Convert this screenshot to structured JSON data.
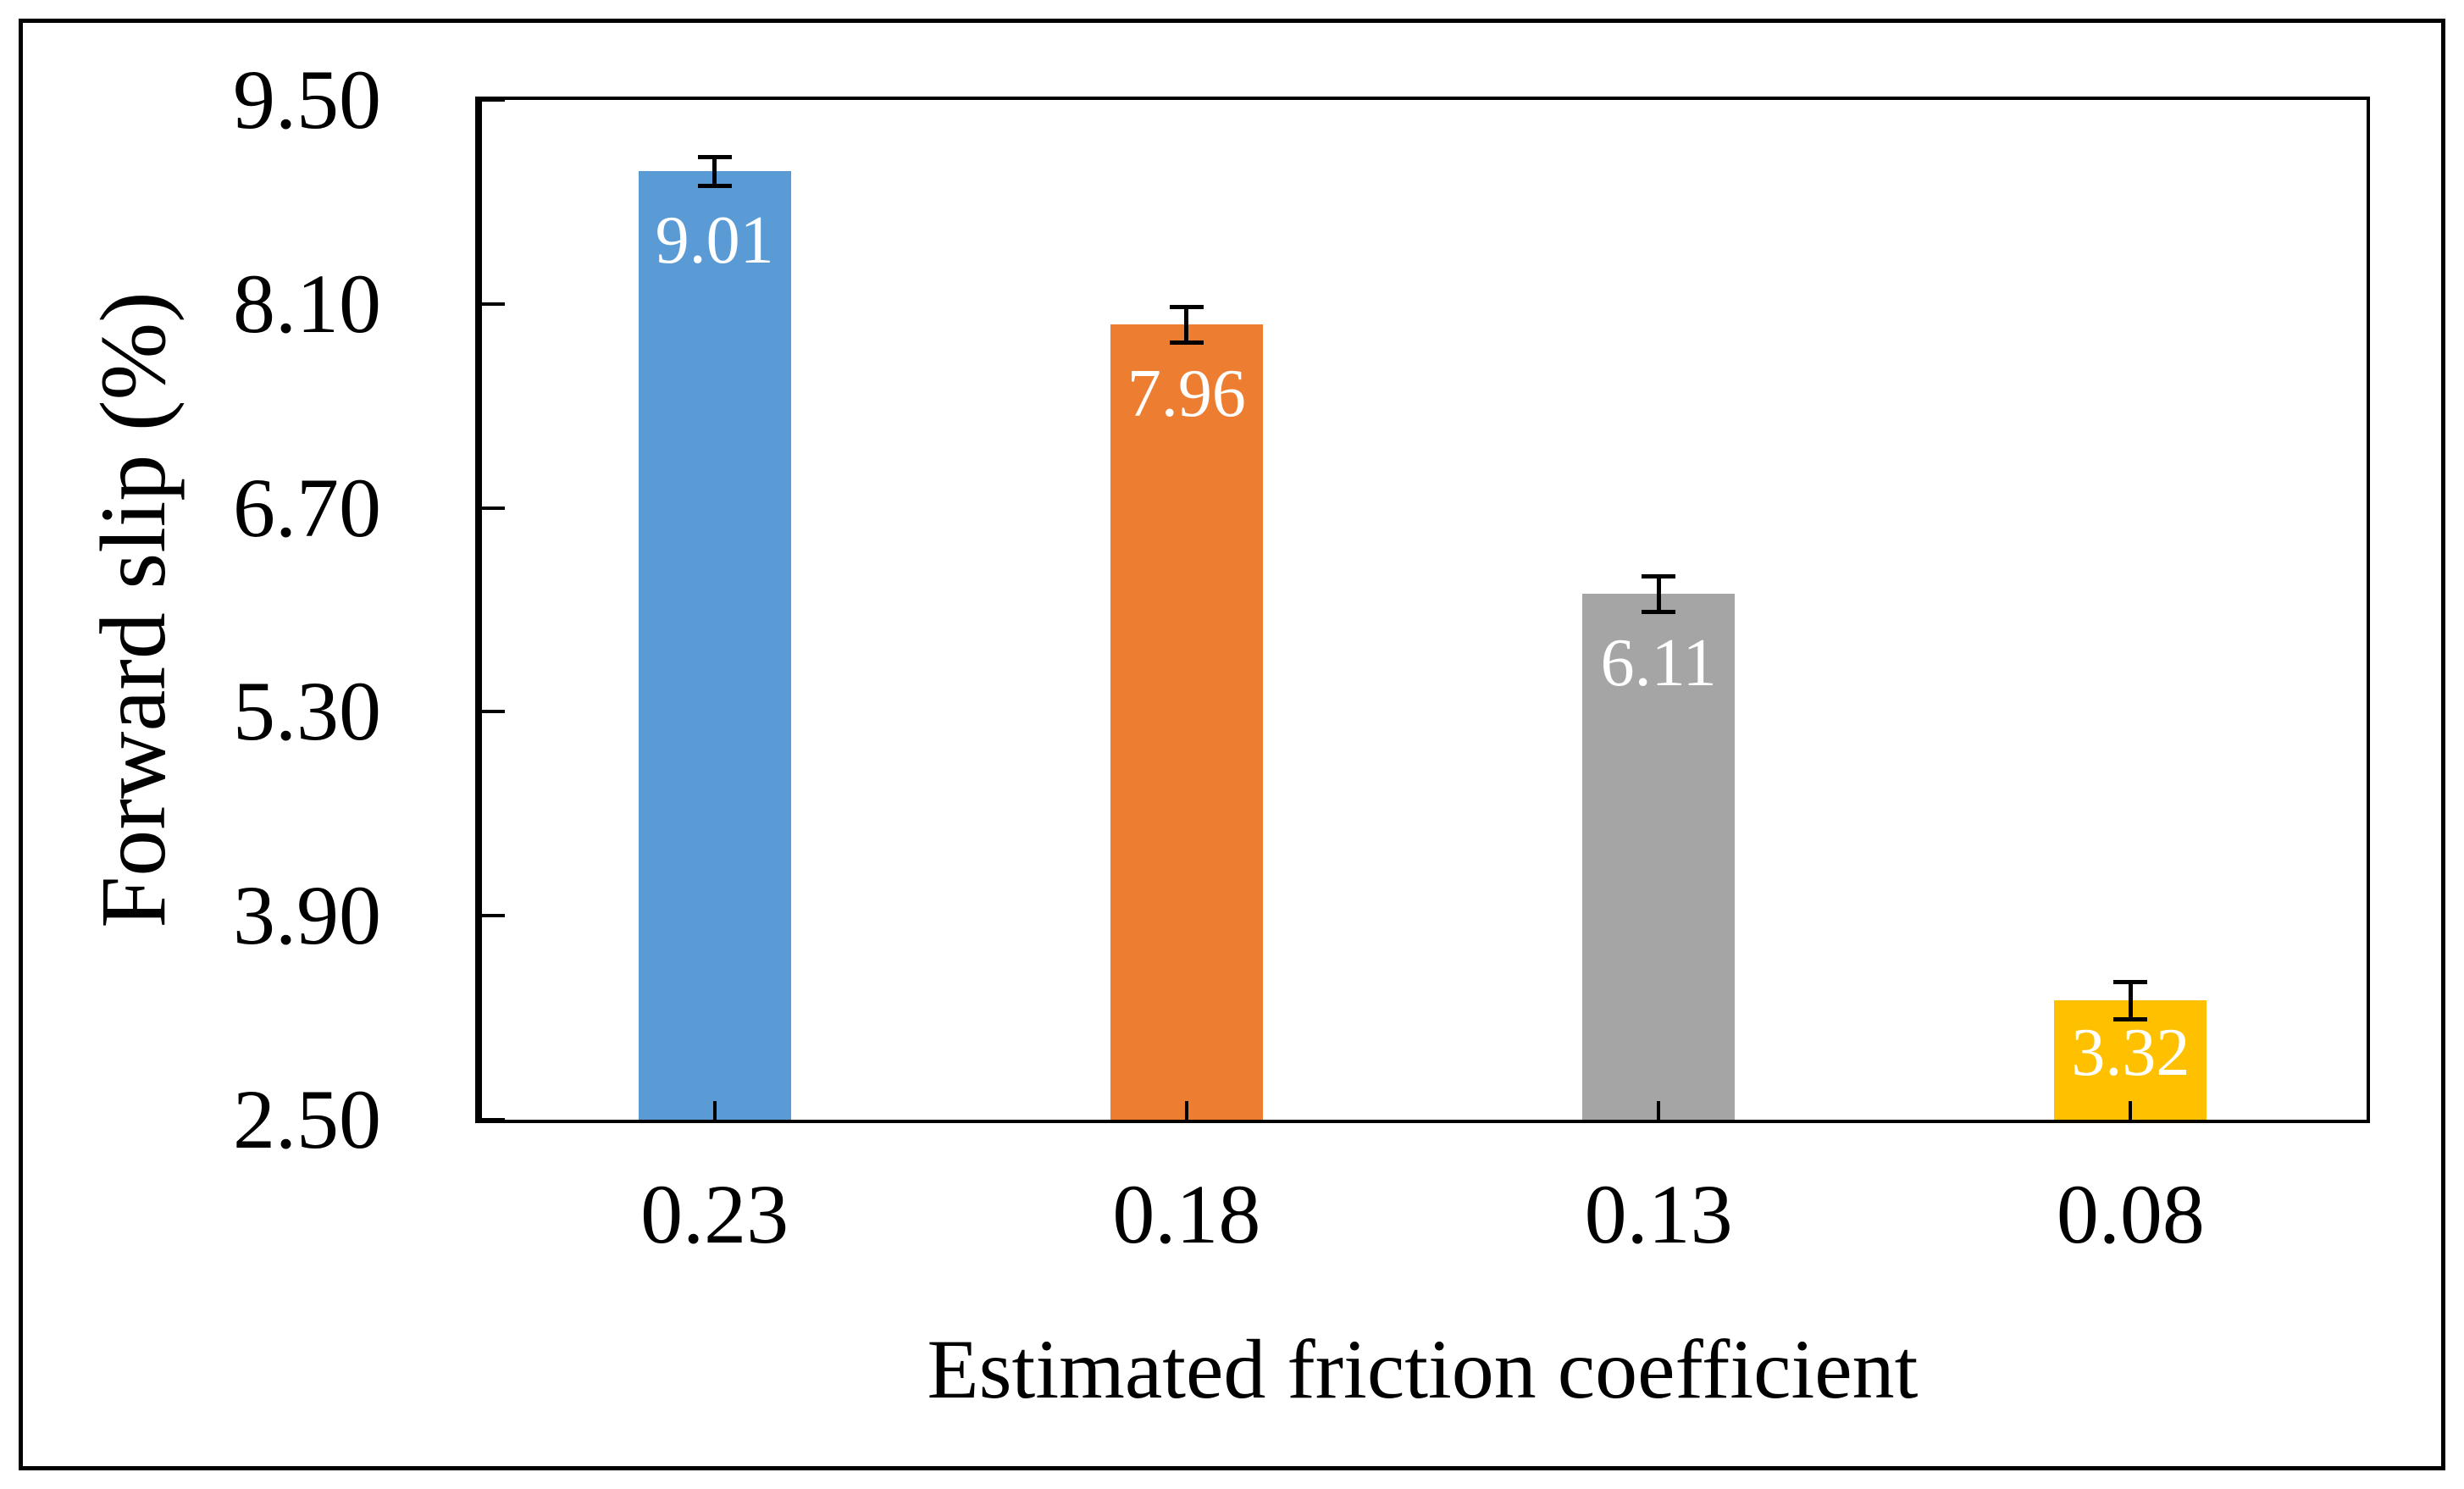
{
  "chart_data": {
    "type": "bar",
    "title": "",
    "categories": [
      "0.23",
      "0.18",
      "0.13",
      "0.08"
    ],
    "values": [
      9.01,
      7.96,
      6.11,
      3.32
    ],
    "data_labels": [
      "9.01",
      "7.96",
      "6.11",
      "3.32"
    ],
    "errors": [
      0.1,
      0.12,
      0.12,
      0.13
    ],
    "bar_colors": [
      "#5B9BD5",
      "#ED7D31",
      "#A5A5A5",
      "#FFC000"
    ],
    "data_label_color": "#FFFFFF",
    "axis_color": "#000000",
    "xlabel": "Estimated friction coefficient",
    "ylabel": "Forward slip (%)",
    "ylim": [
      2.5,
      9.5
    ],
    "ytick_step": 1.4,
    "ytick_labels": [
      "2.50",
      "3.90",
      "5.30",
      "6.70",
      "8.10",
      "9.50"
    ],
    "grid": false,
    "legend": "none",
    "tick_direction": "in",
    "error_bar_caps": true
  }
}
